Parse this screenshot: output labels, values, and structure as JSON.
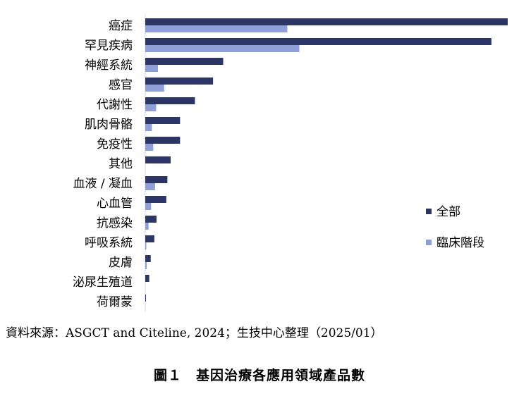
{
  "chart_data": {
    "type": "bar",
    "orientation": "horizontal",
    "categories": [
      "癌症",
      "罕見疾病",
      "神經系統",
      "感官",
      "代謝性",
      "肌肉骨骼",
      "免疫性",
      "其他",
      "血液 / 凝血",
      "心血管",
      "抗感染",
      "呼吸系統",
      "皮膚",
      "泌尿生殖道",
      "荷爾蒙"
    ],
    "series": [
      {
        "name": "全部",
        "color": "#2b3566",
        "values": [
          1000,
          955,
          215,
          187,
          137,
          96,
          96,
          70,
          61,
          58,
          31,
          25,
          15,
          11,
          2
        ]
      },
      {
        "name": "臨床階段",
        "color": "#8f9fd8",
        "values": [
          392,
          425,
          35,
          52,
          30,
          18,
          22,
          0,
          27,
          16,
          9,
          3,
          4,
          0,
          0
        ]
      }
    ],
    "xlim": [
      0,
      1000
    ],
    "grid": false,
    "legend_position": "right"
  },
  "source": "資料來源：ASGCT and Citeline, 2024；生技中心整理（2025/01）",
  "caption": "圖１　基因治療各應用領域產品數"
}
